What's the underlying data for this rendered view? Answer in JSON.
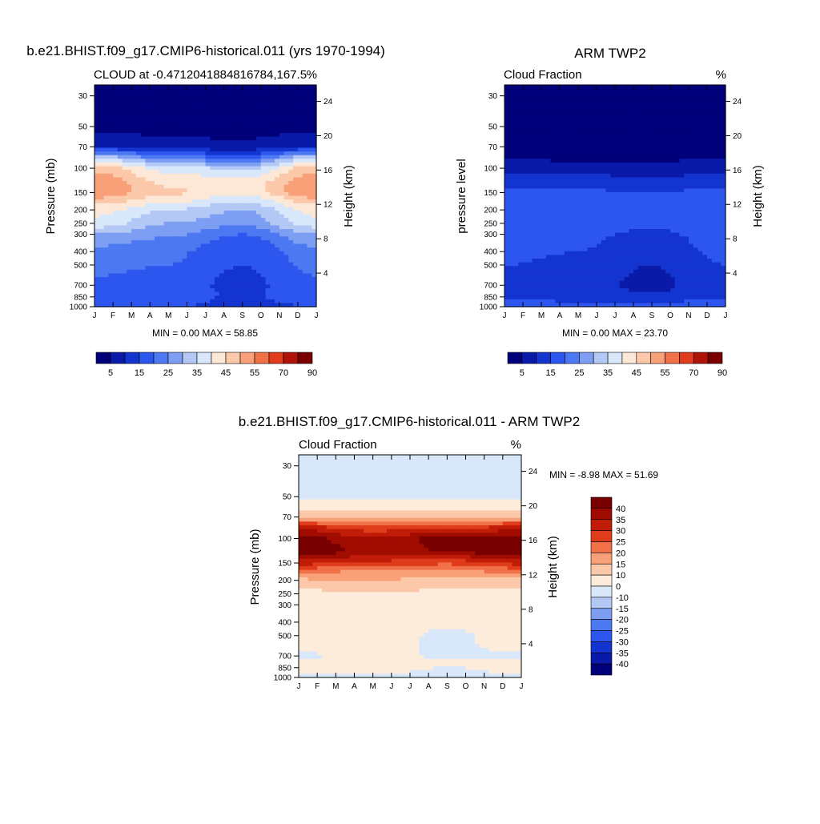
{
  "colors": {
    "seq14": [
      "#00007a",
      "#0a1aa8",
      "#1434d0",
      "#2c56ee",
      "#4c78f2",
      "#7e9ef4",
      "#b4c8f6",
      "#d8e8fa",
      "#fde8d8",
      "#fcc8aa",
      "#f8a078",
      "#f07048",
      "#e03c1c",
      "#b01408",
      "#780000"
    ],
    "div17": [
      "#00007a",
      "#0a1aa8",
      "#1434d0",
      "#2c56ee",
      "#4c78f2",
      "#7e9ef4",
      "#b4c8f6",
      "#d8e8fa",
      "#fdecdc",
      "#fcc8aa",
      "#f8a078",
      "#f07048",
      "#e03c1c",
      "#c01c08",
      "#a00c00",
      "#780000"
    ]
  },
  "panels": {
    "model": {
      "title": "b.e21.BHIST.f09_g17.CMIP6-historical.011 (yrs 1970-1994)",
      "left_label": "CLOUD at -0.4712041884816784,167.5",
      "right_label": "%",
      "ylabel": "Pressure (mb)",
      "y2label": "Height (km)",
      "minmax": "MIN =   0.00 MAX =  58.85"
    },
    "obs": {
      "title": "ARM TWP2",
      "left_label": "Cloud Fraction",
      "right_label": "%",
      "ylabel": "pressure level",
      "y2label": "Height (km)",
      "minmax": "MIN =   0.00 MAX =  23.70"
    },
    "diff": {
      "title": "b.e21.BHIST.f09_g17.CMIP6-historical.011 - ARM TWP2",
      "left_label": "Cloud Fraction",
      "right_label": "%",
      "ylabel": "Pressure (mb)",
      "y2label": "Height (km)",
      "minmax": "MIN =  -8.98 MAX =  51.69"
    }
  },
  "chart_data": [
    {
      "type": "heatmap",
      "id": "model",
      "title": "b.e21.BHIST.f09_g17.CMIP6-historical.011 (yrs 1970-1994)",
      "ylabel": "Pressure (mb)",
      "y2label": "Height (km)",
      "x": [
        "J",
        "F",
        "M",
        "A",
        "M",
        "J",
        "J",
        "A",
        "S",
        "O",
        "N",
        "D",
        "J"
      ],
      "y_ticks": [
        30,
        50,
        70,
        100,
        150,
        200,
        250,
        300,
        400,
        500,
        700,
        850,
        1000
      ],
      "y_scale": "log",
      "ylim": [
        1000,
        25
      ],
      "y2_ticks": [
        24,
        20,
        16,
        12,
        8,
        4
      ],
      "levels": [
        5,
        10,
        15,
        20,
        25,
        30,
        35,
        40,
        45,
        50,
        55,
        60,
        70,
        80,
        90
      ],
      "colorbar_labels": [
        "5",
        "15",
        "25",
        "35",
        "45",
        "55",
        "70",
        "90"
      ],
      "colorbar": "horizontal-bottom",
      "min": 0.0,
      "max": 58.85,
      "profiles": [
        {
          "p": [
            1000,
            900,
            800,
            700,
            600,
            500,
            400,
            350,
            300,
            250,
            200,
            170,
            150,
            125,
            100,
            85,
            70,
            50,
            30
          ],
          "v": [
            15,
            17,
            19,
            20,
            20,
            21,
            23,
            26,
            30,
            38,
            42,
            48,
            55,
            54,
            48,
            36,
            10,
            3,
            2
          ]
        },
        {
          "p": [
            1000,
            900,
            800,
            700,
            600,
            500,
            400,
            350,
            300,
            250,
            200,
            170,
            150,
            125,
            100,
            85,
            70,
            50,
            30
          ],
          "v": [
            16,
            17,
            18,
            18,
            19,
            20,
            21,
            23,
            26,
            30,
            35,
            42,
            46,
            44,
            38,
            24,
            7,
            3,
            2
          ]
        },
        {
          "p": [
            1000,
            900,
            800,
            700,
            600,
            500,
            400,
            350,
            300,
            250,
            200,
            170,
            150,
            125,
            100,
            85,
            70,
            50,
            30
          ],
          "v": [
            12,
            14,
            14,
            13,
            14,
            15,
            16,
            17,
            20,
            26,
            30,
            36,
            42,
            42,
            33,
            20,
            6,
            3,
            2
          ]
        }
      ]
    },
    {
      "type": "heatmap",
      "id": "obs",
      "title": "ARM TWP2",
      "ylabel": "pressure level",
      "y2label": "Height (km)",
      "x": [
        "J",
        "F",
        "M",
        "A",
        "M",
        "J",
        "J",
        "A",
        "S",
        "O",
        "N",
        "D",
        "J"
      ],
      "y_ticks": [
        30,
        50,
        70,
        100,
        150,
        200,
        250,
        300,
        400,
        500,
        700,
        850,
        1000
      ],
      "y_scale": "log",
      "ylim": [
        1000,
        25
      ],
      "y2_ticks": [
        24,
        20,
        16,
        12,
        8,
        4
      ],
      "levels": [
        5,
        10,
        15,
        20,
        25,
        30,
        35,
        40,
        45,
        50,
        55,
        60,
        70,
        80,
        90
      ],
      "colorbar_labels": [
        "5",
        "15",
        "25",
        "35",
        "45",
        "55",
        "70",
        "90"
      ],
      "colorbar": "horizontal-bottom",
      "min": 0.0,
      "max": 23.7,
      "profiles": [
        {
          "p": [
            1000,
            950,
            900,
            800,
            700,
            600,
            500,
            400,
            300,
            250,
            200,
            150,
            120,
            100,
            85,
            70,
            50,
            30
          ],
          "v": [
            12,
            22,
            14,
            15,
            15,
            15,
            15,
            16,
            17,
            18,
            19,
            17,
            12,
            8,
            5,
            3,
            1,
            0
          ]
        },
        {
          "p": [
            1000,
            950,
            900,
            800,
            700,
            600,
            500,
            400,
            300,
            250,
            200,
            150,
            120,
            100,
            85,
            70,
            50,
            30
          ],
          "v": [
            12,
            20,
            13,
            13,
            12,
            13,
            14,
            15,
            16,
            17,
            18,
            16,
            12,
            7,
            4,
            2,
            1,
            0
          ]
        },
        {
          "p": [
            1000,
            950,
            900,
            800,
            700,
            600,
            500,
            400,
            300,
            250,
            200,
            150,
            120,
            100,
            85,
            70,
            50,
            30
          ],
          "v": [
            11,
            22,
            12,
            10,
            8,
            9,
            10,
            12,
            14,
            16,
            17,
            15,
            11,
            7,
            4,
            2,
            1,
            0
          ]
        }
      ]
    },
    {
      "type": "heatmap",
      "id": "diff",
      "title": "b.e21.BHIST.f09_g17.CMIP6-historical.011 - ARM TWP2",
      "ylabel": "Pressure (mb)",
      "y2label": "Height (km)",
      "x": [
        "J",
        "F",
        "M",
        "A",
        "M",
        "J",
        "J",
        "A",
        "S",
        "O",
        "N",
        "D",
        "J"
      ],
      "y_ticks": [
        30,
        50,
        70,
        100,
        150,
        200,
        250,
        300,
        400,
        500,
        700,
        850,
        1000
      ],
      "y_scale": "log",
      "ylim": [
        1000,
        25
      ],
      "y2_ticks": [
        24,
        20,
        16,
        12,
        8,
        4
      ],
      "levels": [
        -40,
        -35,
        -30,
        -25,
        -20,
        -15,
        -10,
        0,
        10,
        15,
        20,
        25,
        30,
        35,
        40
      ],
      "colorbar_labels": [
        "40",
        "35",
        "30",
        "25",
        "20",
        "15",
        "10",
        "0",
        "-10",
        "-15",
        "-20",
        "-25",
        "-30",
        "-35",
        "-40"
      ],
      "colorbar": "vertical-right",
      "min": -8.98,
      "max": 51.69,
      "profiles": [
        {
          "p": [
            1000,
            900,
            800,
            700,
            600,
            500,
            400,
            300,
            250,
            200,
            170,
            150,
            125,
            100,
            85,
            70,
            55,
            50,
            30
          ],
          "v": [
            -3,
            2,
            2,
            -2,
            3,
            5,
            2,
            5,
            8,
            14,
            22,
            32,
            45,
            42,
            34,
            15,
            4,
            -2,
            -2
          ]
        },
        {
          "p": [
            1000,
            900,
            800,
            700,
            600,
            500,
            400,
            300,
            250,
            200,
            170,
            150,
            125,
            100,
            85,
            70,
            55,
            50,
            30
          ],
          "v": [
            -2,
            3,
            3,
            5,
            4,
            5,
            4,
            7,
            10,
            15,
            20,
            28,
            38,
            36,
            28,
            14,
            4,
            -2,
            -2
          ]
        },
        {
          "p": [
            1000,
            900,
            800,
            700,
            600,
            500,
            400,
            300,
            250,
            200,
            170,
            150,
            125,
            100,
            85,
            70,
            55,
            50,
            30
          ],
          "v": [
            -2,
            -2,
            2,
            -2,
            -2,
            -2,
            2,
            5,
            8,
            13,
            20,
            26,
            40,
            42,
            30,
            13,
            4,
            -2,
            -2
          ]
        }
      ]
    }
  ]
}
